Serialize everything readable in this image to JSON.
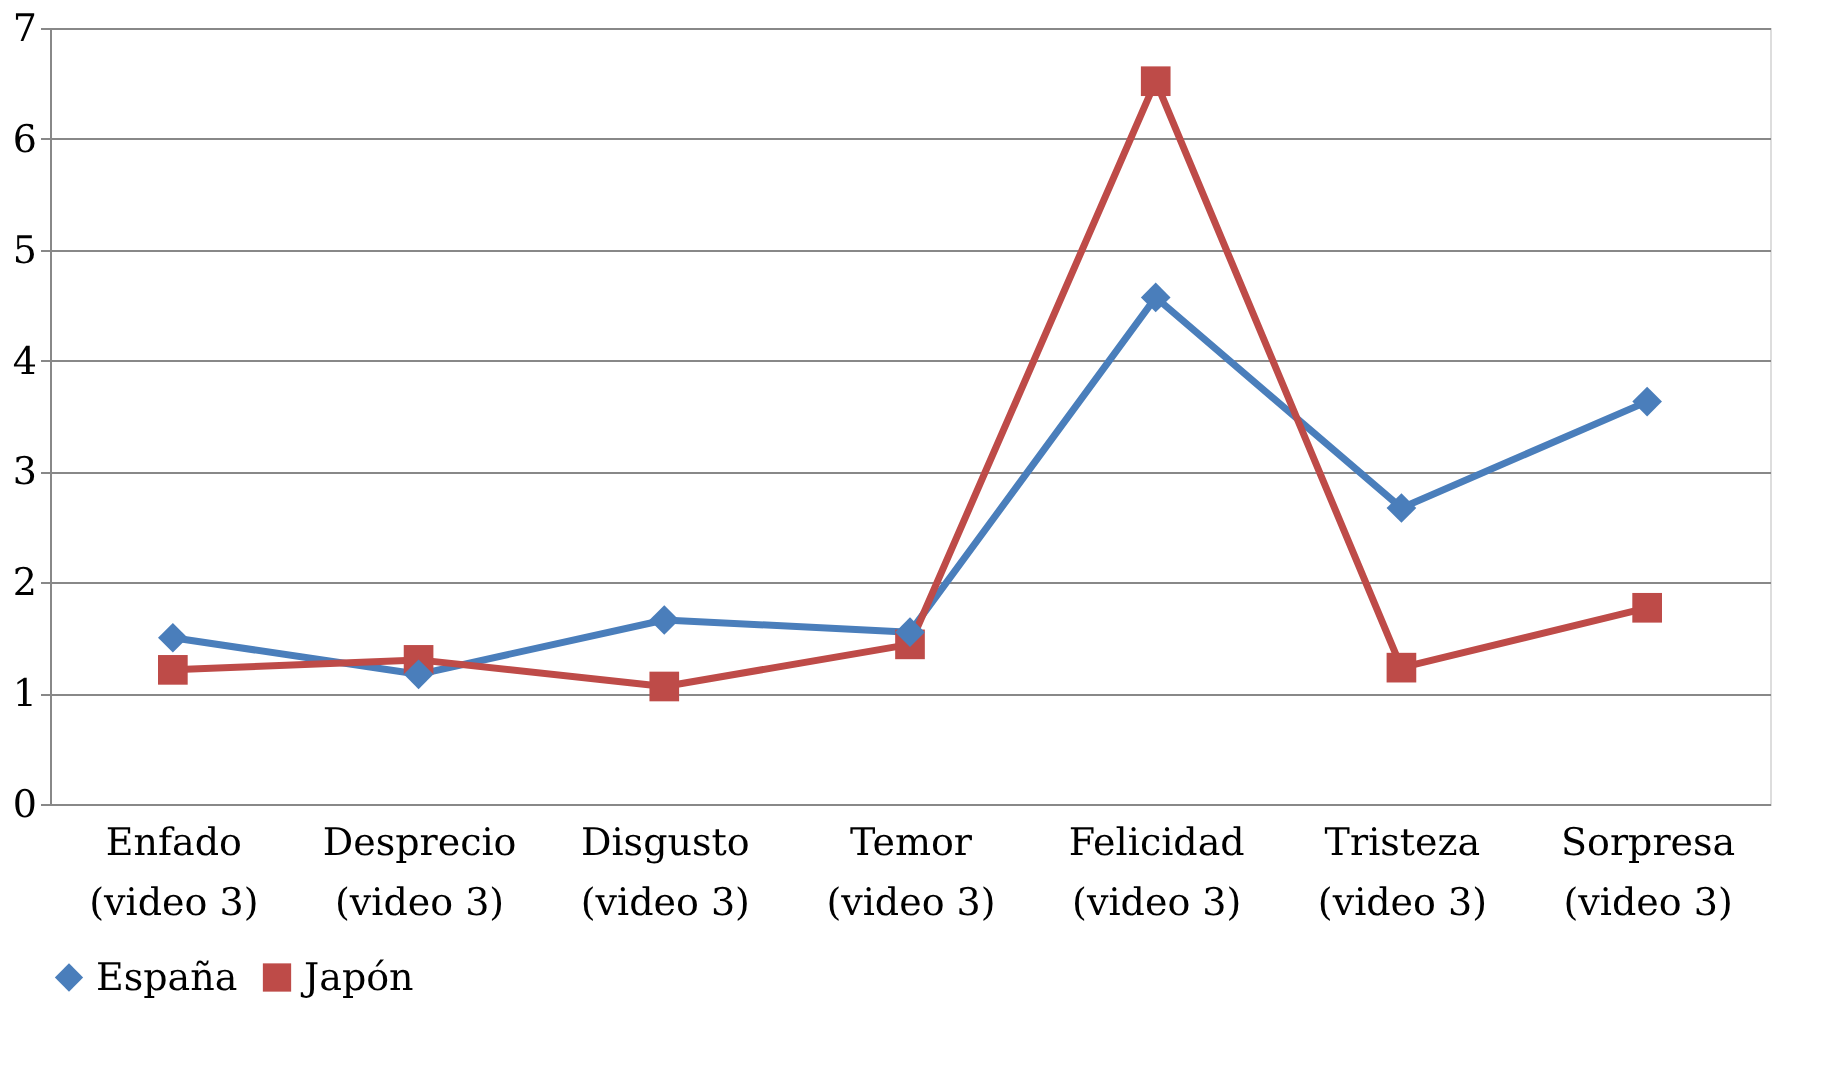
{
  "chart_data": {
    "type": "line",
    "categories": [
      "Enfado\n(video 3)",
      "Desprecio\n(video 3)",
      "Disgusto\n(video 3)",
      "Temor\n(video 3)",
      "Felicidad\n(video 3)",
      "Tristeza\n(video 3)",
      "Sorpresa\n(video 3)"
    ],
    "series": [
      {
        "name": "España",
        "color": "#4a7ebb",
        "marker": "diamond",
        "values": [
          1.5,
          1.17,
          1.66,
          1.55,
          4.57,
          2.67,
          3.63
        ]
      },
      {
        "name": "Japón",
        "color": "#be4b48",
        "marker": "square",
        "values": [
          1.21,
          1.3,
          1.06,
          1.44,
          6.52,
          1.23,
          1.77
        ]
      }
    ],
    "ylim": [
      0,
      7
    ],
    "yticks": [
      0,
      1,
      2,
      3,
      4,
      5,
      6,
      7
    ],
    "grid": "y",
    "legend": "bottom",
    "line_style": "solid"
  }
}
